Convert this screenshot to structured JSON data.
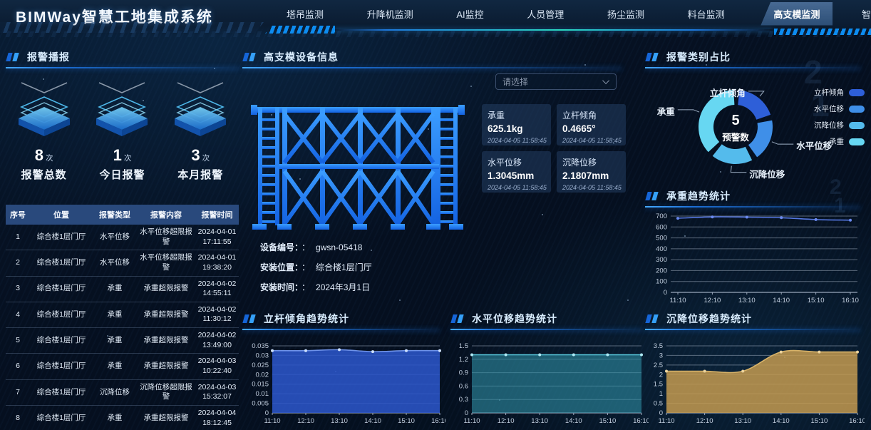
{
  "header": {
    "title": "BIMWay智慧工地集成系统",
    "nav": [
      {
        "label": "塔吊监测",
        "active": false
      },
      {
        "label": "升降机监测",
        "active": false
      },
      {
        "label": "AI监控",
        "active": false
      },
      {
        "label": "人员管理",
        "active": false
      },
      {
        "label": "扬尘监测",
        "active": false
      },
      {
        "label": "料台监测",
        "active": false
      },
      {
        "label": "高支模监测",
        "active": true
      },
      {
        "label": "智",
        "active": false,
        "partial": true
      }
    ]
  },
  "alarm_panel": {
    "title": "报警播报",
    "stats": [
      {
        "value": "8",
        "unit": "次",
        "label": "报警总数"
      },
      {
        "value": "1",
        "unit": "次",
        "label": "今日报警"
      },
      {
        "value": "3",
        "unit": "次",
        "label": "本月报警"
      }
    ],
    "table": {
      "headers": [
        "序号",
        "位置",
        "报警类型",
        "报警内容",
        "报警时间"
      ],
      "rows": [
        {
          "no": "1",
          "loc": "综合楼1层门厅",
          "type": "水平位移",
          "content": "水平位移超限报警",
          "date": "2024-04-01",
          "time": "17:11:55"
        },
        {
          "no": "2",
          "loc": "综合楼1层门厅",
          "type": "水平位移",
          "content": "水平位移超限报警",
          "date": "2024-04-01",
          "time": "19:38:20"
        },
        {
          "no": "3",
          "loc": "综合楼1层门厅",
          "type": "承重",
          "content": "承重超限报警",
          "date": "2024-04-02",
          "time": "14:55:11"
        },
        {
          "no": "4",
          "loc": "综合楼1层门厅",
          "type": "承重",
          "content": "承重超限报警",
          "date": "2024-04-02",
          "time": "11:30:12"
        },
        {
          "no": "5",
          "loc": "综合楼1层门厅",
          "type": "承重",
          "content": "承重超限报警",
          "date": "2024-04-02",
          "time": "13:49:00"
        },
        {
          "no": "6",
          "loc": "综合楼1层门厅",
          "type": "承重",
          "content": "承重超限报警",
          "date": "2024-04-03",
          "time": "10:22:40"
        },
        {
          "no": "7",
          "loc": "综合楼1层门厅",
          "type": "沉降位移",
          "content": "沉降位移超限报警",
          "date": "2024-04-03",
          "time": "15:32:07"
        },
        {
          "no": "8",
          "loc": "综合楼1层门厅",
          "type": "承重",
          "content": "承重超限报警",
          "date": "2024-04-04",
          "time": "18:12:45"
        }
      ]
    }
  },
  "device_panel": {
    "title": "高支模设备信息",
    "select_placeholder": "请选择",
    "metrics": [
      {
        "label": "承重",
        "value": "625.1kg",
        "time": "2024-04-05 11:58:45"
      },
      {
        "label": "立杆倾角",
        "value": "0.4665°",
        "time": "2024-04-05 11:58:45"
      },
      {
        "label": "水平位移",
        "value": "1.3045mm",
        "time": "2024-04-05 11:58:45"
      },
      {
        "label": "沉降位移",
        "value": "2.1807mm",
        "time": "2024-04-05 11:58:45"
      }
    ],
    "info": [
      {
        "label": "设备编号：",
        "colon": "：",
        "value": "gwsn-05418"
      },
      {
        "label": "安装位置：",
        "colon": "：",
        "value": "综合楼1层门厅"
      },
      {
        "label": "安装时间：",
        "colon": "：",
        "value": "2024年3月1日"
      }
    ]
  },
  "decor_digits": [
    "2",
    "1",
    "2",
    "1"
  ],
  "colors": {
    "accent": "#1e86f0",
    "nav_active_bg": "#3c5d85",
    "table_header_bg": "#29497c"
  },
  "chart_data": [
    {
      "id": "alarm-category",
      "type": "pie",
      "title": "报警类别占比",
      "center_value": "5",
      "center_label": "预警数",
      "slices": [
        {
          "name": "立杆倾角",
          "value": 1,
          "color": "#2e5fd8"
        },
        {
          "name": "水平位移",
          "value": 1,
          "color": "#3f8fe8"
        },
        {
          "name": "沉降位移",
          "value": 1,
          "color": "#54bbec"
        },
        {
          "name": "承重",
          "value": 2,
          "color": "#67d7f2"
        }
      ],
      "legend_position": "right"
    },
    {
      "id": "weight-trend",
      "type": "line",
      "title": "承重趋势统计",
      "x": [
        "11:10",
        "12:10",
        "13:10",
        "14:10",
        "15:10",
        "16:10"
      ],
      "values": [
        680,
        692,
        690,
        685,
        668,
        662
      ],
      "ylim": [
        0,
        700
      ],
      "ystep": 100,
      "grid": true,
      "color": "#4066d6",
      "line_color": "#5577e0",
      "dot_color": "#6b8af0",
      "fill_opacity": 0
    },
    {
      "id": "tilt-trend",
      "type": "area",
      "title": "立杆倾角趋势统计",
      "x": [
        "11:10",
        "12:10",
        "13:10",
        "14:10",
        "15:10",
        "16:10"
      ],
      "values": [
        0.0325,
        0.0325,
        0.033,
        0.032,
        0.0325,
        0.0325
      ],
      "ylim": [
        0,
        0.035
      ],
      "ystep": 0.005,
      "grid": true,
      "color": "#2b55c8",
      "line_color": "#6f93ea",
      "dot_color": "#cfe2ff",
      "fill_opacity": 0.88
    },
    {
      "id": "hdisp-trend",
      "type": "area",
      "title": "水平位移趋势统计",
      "x": [
        "11:10",
        "12:10",
        "13:10",
        "14:10",
        "15:10",
        "16:10"
      ],
      "values": [
        1.3,
        1.3,
        1.3,
        1.3,
        1.3,
        1.3
      ],
      "ylim": [
        0,
        1.5
      ],
      "ystep": 0.3,
      "grid": true,
      "color": "#2f8ea4",
      "line_color": "#59c8dc",
      "dot_color": "#aeeaf6",
      "fill_opacity": 0.6
    },
    {
      "id": "settle-trend",
      "type": "area",
      "title": "沉降位移趋势统计",
      "x": [
        "11:10",
        "12:10",
        "13:10",
        "14:10",
        "15:10",
        "16:10"
      ],
      "values": [
        2.18,
        2.18,
        2.18,
        3.18,
        3.18,
        3.18
      ],
      "ylim": [
        0,
        3.5
      ],
      "ystep": 0.5,
      "grid": true,
      "color": "#c39a50",
      "line_color": "#d8b369",
      "dot_color": "#ecd49e",
      "fill_opacity": 0.85
    }
  ]
}
